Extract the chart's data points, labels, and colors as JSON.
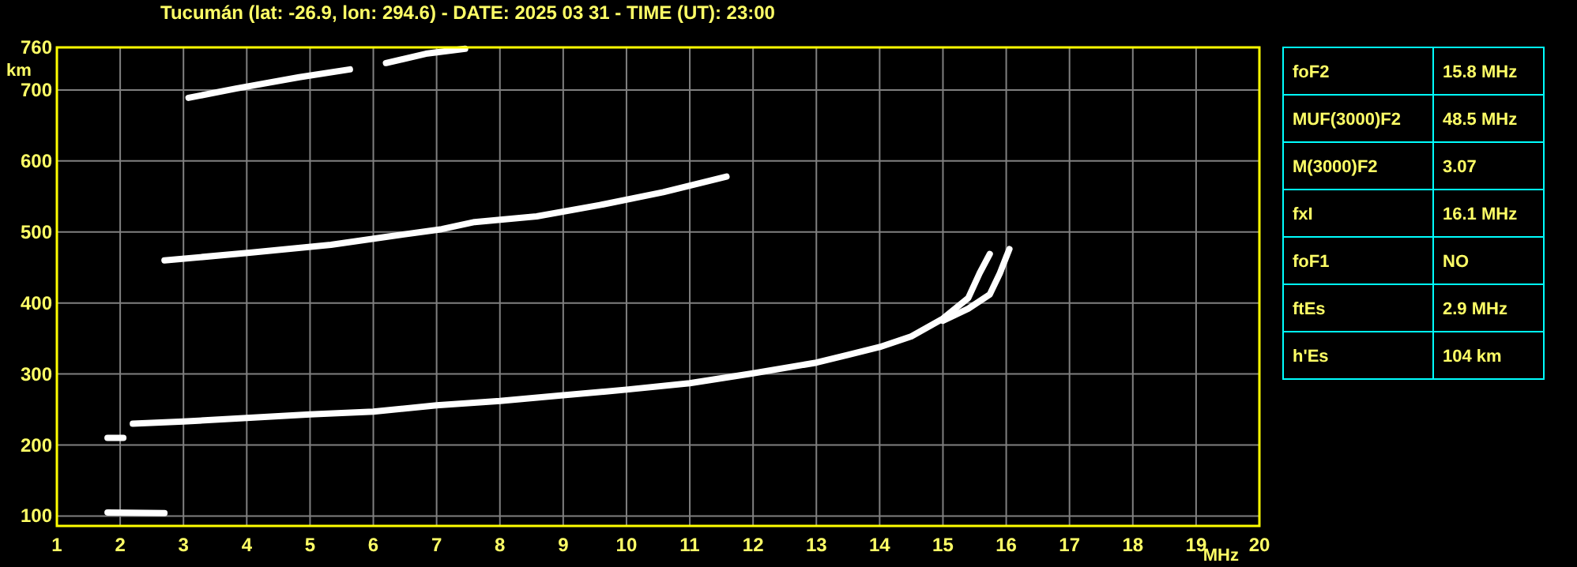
{
  "chart_data": [
    {
      "type": "line",
      "title": "Tucumán (lat: -26.9, lon: 294.6) - DATE: 2025 03 31 - TIME (UT): 23:00",
      "xlabel": "MHz",
      "ylabel": "km",
      "xlim": [
        1,
        20
      ],
      "ylim": [
        86,
        760
      ],
      "xticks": [
        1,
        2,
        3,
        4,
        5,
        6,
        7,
        8,
        9,
        10,
        11,
        12,
        13,
        14,
        15,
        16,
        17,
        18,
        19,
        20
      ],
      "yticks": [
        100,
        200,
        300,
        400,
        500,
        600,
        700,
        760
      ],
      "grid": true,
      "series": [
        {
          "color": "#ffffff",
          "x": [
            1.8,
            2.7
          ],
          "values": [
            105,
            104
          ]
        },
        {
          "color": "#ffffff",
          "x": [
            1.8,
            2.05
          ],
          "values": [
            210,
            210
          ]
        },
        {
          "color": "#ffffff",
          "x": [
            2.2,
            3,
            4,
            5,
            6,
            7,
            8,
            9,
            10,
            11,
            12,
            13,
            13.5,
            14,
            14.5,
            15,
            15.4,
            15.58,
            15.74
          ],
          "values": [
            230,
            233,
            238,
            243,
            247,
            256,
            262,
            270,
            278,
            287,
            301,
            316,
            327,
            338,
            353,
            378,
            407,
            442,
            469
          ]
        },
        {
          "color": "#ffffff",
          "x": [
            15,
            15.4,
            15.74,
            15.9,
            16.05
          ],
          "values": [
            375,
            392,
            412,
            442,
            476
          ]
        },
        {
          "color": "#ffffff",
          "x": [
            2.7,
            4.08,
            5.33,
            6.2,
            7.08,
            7.6,
            8.58,
            9.58,
            10.58,
            11.58
          ],
          "values": [
            460,
            471,
            482,
            493,
            504,
            514,
            522,
            538,
            556,
            578
          ]
        },
        {
          "color": "#ffffff",
          "x": [
            3.08,
            3.83,
            4.83,
            5.63,
            5.9,
            6.2,
            6.83,
            7.45
          ],
          "values": [
            689,
            702,
            718,
            729,
            null,
            738,
            751,
            758
          ]
        }
      ]
    },
    {
      "type": "other",
      "annotations": [
        "foF2",
        "15.8 MHz",
        "MUF(3000)F2",
        "48.5 MHz",
        "M(3000)F2",
        "3.07",
        "fxI",
        "16.1 MHz",
        "foF1",
        "NO",
        "ftEs",
        "2.9 MHz",
        "h'Es",
        "104 km"
      ]
    }
  ]
}
